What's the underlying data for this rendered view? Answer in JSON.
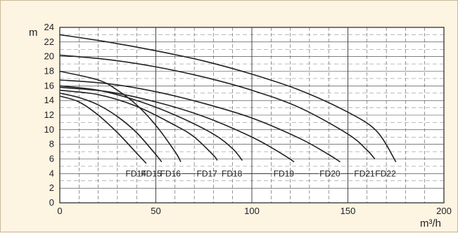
{
  "chart_data": {
    "type": "line",
    "title": "",
    "xlabel": "m³/h",
    "ylabel": "m",
    "xlim": [
      0,
      200
    ],
    "ylim": [
      0,
      24
    ],
    "x_ticks": [
      0,
      50,
      100,
      150,
      200
    ],
    "y_ticks": [
      0,
      2,
      4,
      6,
      8,
      10,
      12,
      14,
      16,
      18,
      20,
      22,
      24
    ],
    "grid": true,
    "background": "#fdf4e2",
    "line_color": "#222222",
    "series": [
      {
        "name": "FD14",
        "x": [
          0,
          10,
          20,
          30,
          40,
          45
        ],
        "y": [
          14.6,
          13.8,
          12.0,
          9.6,
          6.8,
          5.4
        ]
      },
      {
        "name": "FD15",
        "x": [
          0,
          10,
          20,
          30,
          40,
          50,
          53
        ],
        "y": [
          15.0,
          14.4,
          13.4,
          11.8,
          9.6,
          6.6,
          5.6
        ]
      },
      {
        "name": "FD16",
        "x": [
          0,
          20,
          30,
          40,
          50,
          60,
          63
        ],
        "y": [
          18.0,
          16.8,
          15.4,
          13.4,
          10.6,
          7.0,
          5.6
        ]
      },
      {
        "name": "FD17",
        "x": [
          0,
          20,
          40,
          60,
          70,
          80,
          82
        ],
        "y": [
          15.4,
          14.8,
          13.2,
          10.6,
          9.0,
          6.5,
          5.8
        ]
      },
      {
        "name": "FD18",
        "x": [
          0,
          20,
          40,
          60,
          80,
          90,
          95
        ],
        "y": [
          16.0,
          15.4,
          14.0,
          12.0,
          9.4,
          7.4,
          5.8
        ]
      },
      {
        "name": "FD19",
        "x": [
          0,
          25,
          50,
          75,
          100,
          115,
          122
        ],
        "y": [
          15.8,
          15.2,
          13.8,
          11.8,
          9.0,
          6.8,
          5.6
        ]
      },
      {
        "name": "FD20",
        "x": [
          0,
          25,
          50,
          75,
          100,
          125,
          140,
          146
        ],
        "y": [
          16.8,
          16.3,
          15.2,
          13.6,
          11.6,
          8.8,
          6.6,
          5.6
        ]
      },
      {
        "name": "FD21",
        "x": [
          0,
          25,
          50,
          75,
          100,
          125,
          150,
          160,
          164
        ],
        "y": [
          20.2,
          19.6,
          18.6,
          17.2,
          15.4,
          13.0,
          9.4,
          7.2,
          6.0
        ]
      },
      {
        "name": "FD22",
        "x": [
          0,
          25,
          50,
          75,
          100,
          125,
          150,
          165,
          175
        ],
        "y": [
          23.0,
          22.0,
          20.8,
          19.4,
          17.6,
          15.4,
          12.4,
          9.8,
          5.6
        ]
      }
    ]
  }
}
